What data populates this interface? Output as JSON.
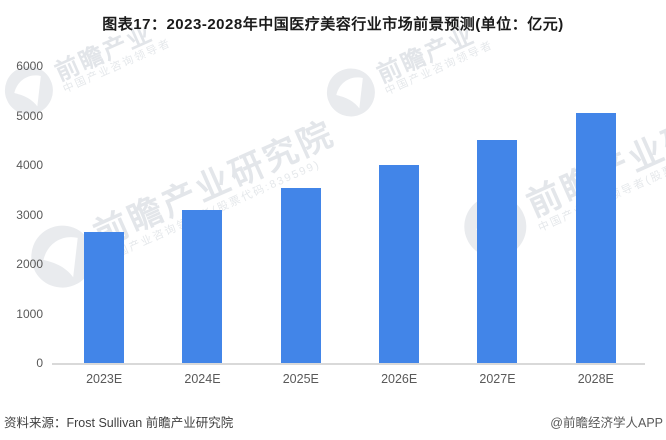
{
  "title": "图表17：2023-2028年中国医疗美容行业市场前景预测(单位：亿元)",
  "footer": {
    "source_label": "资料来源：Frost Sullivan 前瞻产业研究院",
    "credit_label": "@前瞻经济学人APP"
  },
  "watermarks": {
    "brand_large": "前瞻产业研究院",
    "brand_short": "前瞻产业",
    "tagline": "中国产业咨询领导者",
    "stock_note": "(股票代码:839599)"
  },
  "chart_data": {
    "type": "bar",
    "title": "图表17：2023-2028年中国医疗美容行业市场前景预测(单位：亿元)",
    "unit": "亿元",
    "categories": [
      "2023E",
      "2024E",
      "2025E",
      "2026E",
      "2027E",
      "2028E"
    ],
    "values": [
      2650,
      3100,
      3530,
      4000,
      4500,
      5060
    ],
    "xlabel": "",
    "ylabel": "",
    "ylim": [
      0,
      6000
    ],
    "yticks": [
      0,
      1000,
      2000,
      3000,
      4000,
      5000,
      6000
    ],
    "grid": false,
    "legend": false,
    "bar_color": "#4285e8",
    "axis_line_color": "#d9d9d9",
    "tick_label_color": "#595959"
  }
}
